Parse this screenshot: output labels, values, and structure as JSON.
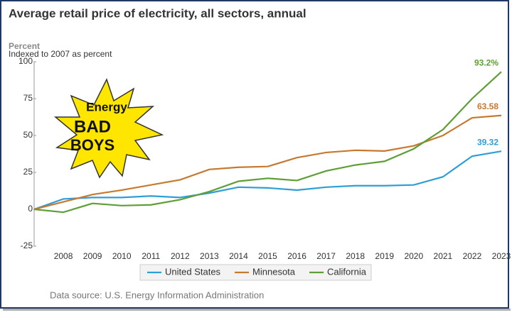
{
  "chart_data": {
    "type": "line",
    "title": "Average retail price of electricity, all sectors, annual",
    "y_label": "Percent",
    "subtitle": "Indexed to 2007 as percent",
    "source": "Data source: U.S. Energy Information Administration",
    "logo": [
      "Energy",
      "BAD",
      "BOYS"
    ],
    "categories": [
      null,
      "2008",
      "2009",
      "2010",
      "2011",
      "2012",
      "2013",
      "2014",
      "2015",
      "2016",
      "2017",
      "2018",
      "2019",
      "2020",
      "2021",
      "2022",
      "2023"
    ],
    "ylim": [
      -25,
      100
    ],
    "yticks": [
      -25,
      0,
      25,
      50,
      75,
      100
    ],
    "grid": false,
    "series": [
      {
        "name": "United States",
        "color": "#2e9fd6",
        "values": [
          0,
          7,
          8,
          8,
          9,
          8,
          11,
          15,
          14.5,
          13,
          15,
          16,
          16,
          16.5,
          22,
          36,
          39.32
        ]
      },
      {
        "name": "Minnesota",
        "color": "#c7792f",
        "values": [
          0,
          5,
          10,
          13,
          16.5,
          20,
          27,
          28.5,
          29,
          35,
          38.5,
          40,
          39.5,
          43,
          50,
          62,
          63.58
        ]
      },
      {
        "name": "California",
        "color": "#5e9e36",
        "values": [
          0,
          -2,
          4,
          2.5,
          3,
          6.5,
          12,
          19,
          21,
          19.5,
          26,
          30,
          32.5,
          41,
          54,
          75,
          93.2
        ],
        "value_labels": [
          null,
          null,
          null,
          null,
          null,
          null,
          null,
          null,
          null,
          null,
          null,
          null,
          null,
          null,
          null,
          null,
          "93.2%"
        ]
      }
    ]
  }
}
